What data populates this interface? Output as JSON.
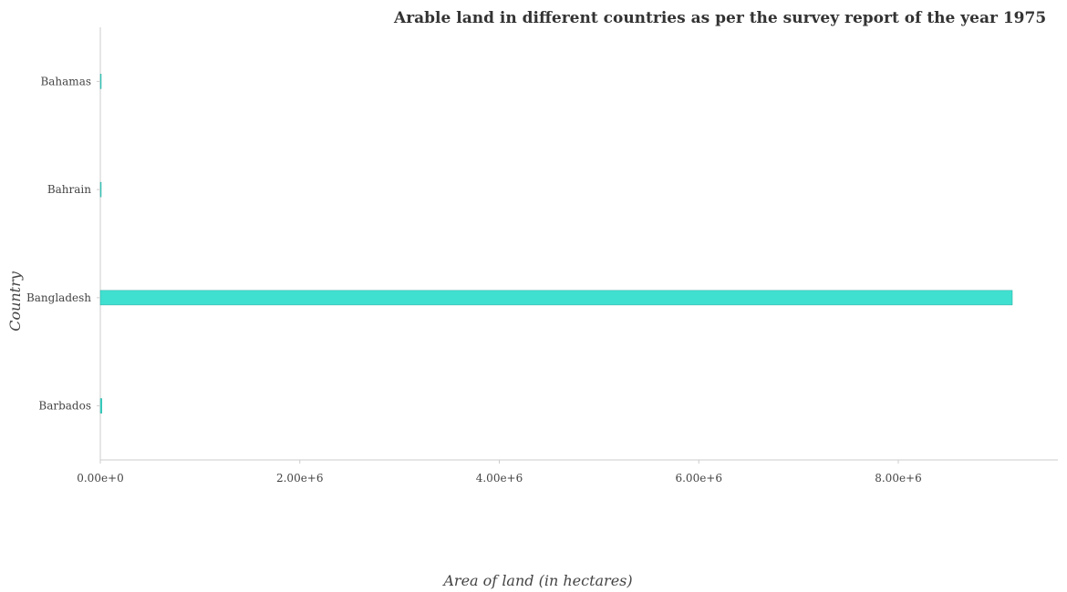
{
  "chart_data": {
    "type": "bar",
    "orientation": "horizontal",
    "title": "Arable land in different countries as per the survey report of the year 1975",
    "xlabel": "Area of land (in hectares)",
    "ylabel": "Country",
    "categories": [
      "Bahamas",
      "Bahrain",
      "Bangladesh",
      "Barbados"
    ],
    "values": [
      8000,
      2000,
      9143000,
      16000
    ],
    "xlim": [
      0,
      9600000
    ],
    "xticks": [
      0,
      2000000,
      4000000,
      6000000,
      8000000
    ],
    "xtick_labels": [
      "0.00e+0",
      "2.00e+6",
      "4.00e+6",
      "6.00e+6",
      "8.00e+6"
    ],
    "grid": false,
    "legend": "none",
    "bar_color": "#40e0d0"
  }
}
